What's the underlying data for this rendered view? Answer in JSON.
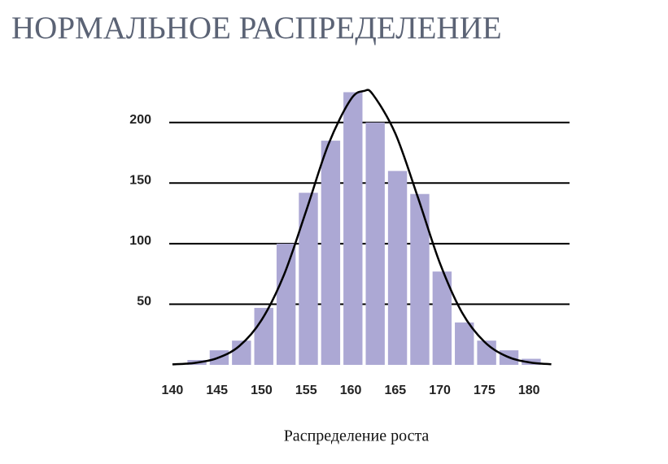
{
  "chart_data": {
    "type": "histogram",
    "title": "НОРМАЛЬНОЕ РАСПРЕДЕЛЕНИЕ",
    "x_label": "Распределение роста",
    "bins": [
      141.5,
      144,
      146.5,
      149,
      151.5,
      154,
      156.5,
      159,
      161.5,
      164,
      166.5,
      169,
      171.5,
      174,
      176.5,
      179,
      181.5
    ],
    "values": [
      4,
      12,
      20,
      47,
      100,
      142,
      185,
      225,
      200,
      160,
      141,
      77,
      35,
      20,
      12,
      5
    ],
    "color": "#aca8d4",
    "curve": {
      "color": "#000000",
      "x": [
        140,
        142.5,
        145,
        147.5,
        150,
        152.5,
        155,
        157.5,
        160,
        161.5,
        162.5,
        165,
        167.5,
        170,
        172.5,
        175,
        177.5,
        180,
        182.5
      ],
      "values": [
        0.4,
        1.6,
        5.5,
        15.5,
        37,
        74,
        127,
        182,
        219,
        226,
        223,
        191,
        139,
        84,
        43,
        19,
        7,
        2.1,
        0.5
      ]
    },
    "xlim": [
      138,
      184
    ],
    "xticks": [
      140,
      145,
      150,
      155,
      160,
      165,
      170,
      175,
      180
    ],
    "ylim": [
      0,
      230
    ],
    "yticks": [
      50,
      100,
      150,
      200
    ],
    "grid": true
  }
}
